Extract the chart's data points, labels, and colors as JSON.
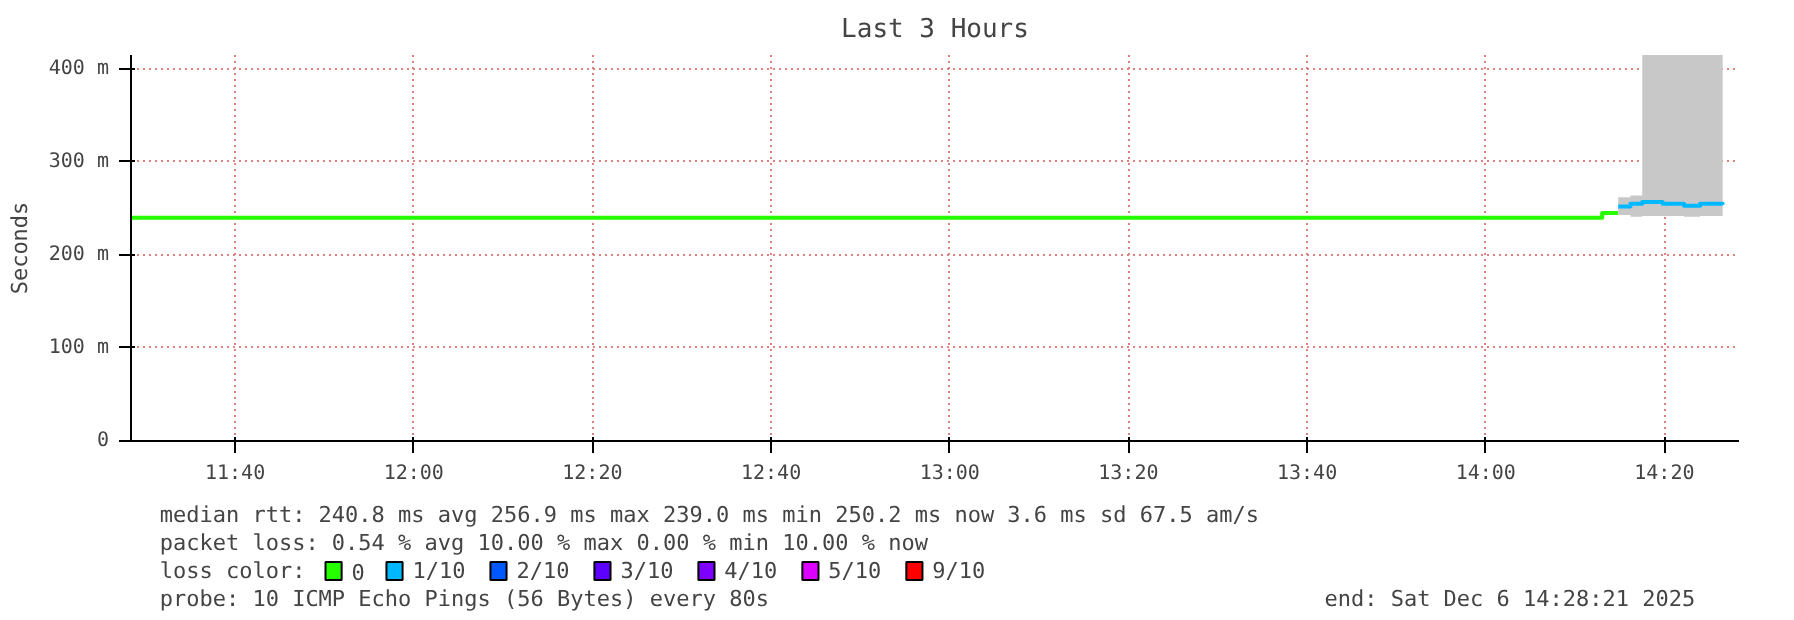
{
  "chart_data": {
    "type": "step",
    "title": "Last 3 Hours",
    "ylabel": "Seconds",
    "legend_title": "loss color:",
    "legend": "bottom",
    "grid": true,
    "line_style": "solid",
    "xlim": [
      11.4725,
      14.4725
    ],
    "ylim": [
      0,
      415
    ],
    "xticks": [
      {
        "value": 11.6667,
        "label": "11:40"
      },
      {
        "value": 12.0,
        "label": "12:00"
      },
      {
        "value": 12.3333,
        "label": "12:20"
      },
      {
        "value": 12.6667,
        "label": "12:40"
      },
      {
        "value": 13.0,
        "label": "13:00"
      },
      {
        "value": 13.3333,
        "label": "13:20"
      },
      {
        "value": 13.6667,
        "label": "13:40"
      },
      {
        "value": 14.0,
        "label": "14:00"
      },
      {
        "value": 14.3333,
        "label": "14:20"
      }
    ],
    "yticks": [
      0,
      {
        "value": 100,
        "label": "100 m"
      },
      {
        "value": 200,
        "label": "200 m"
      },
      {
        "value": 300,
        "label": "300 m"
      },
      {
        "value": 400,
        "label": "400 m"
      }
    ],
    "series": [
      {
        "name": "0",
        "color": "#26ff00",
        "x": [
          11.4725,
          14.2172,
          14.2472
        ],
        "values": [
          240,
          245,
          245
        ]
      },
      {
        "name": "1/10",
        "color": "#00b8ff",
        "x": [
          14.2472,
          14.27,
          14.292,
          14.33,
          14.37,
          14.4,
          14.442
        ],
        "values": [
          252,
          255,
          257,
          255,
          253,
          255,
          254
        ],
        "lower": [
          243,
          241,
          242,
          242,
          241,
          242,
          242
        ],
        "upper": [
          262,
          264,
          415,
          415,
          415,
          415,
          415
        ]
      },
      {
        "name": "2/10",
        "color": "#0059ff"
      },
      {
        "name": "3/10",
        "color": "#5e00ff"
      },
      {
        "name": "4/10",
        "color": "#7e00ff"
      },
      {
        "name": "5/10",
        "color": "#dd00ff"
      },
      {
        "name": "9/10",
        "color": "#ff0000"
      }
    ],
    "annotations": [
      "median rtt:  240.8 ms avg  256.9 ms max  239.0 ms min  250.2 ms now  3.6 ms sd  67.5   am/s",
      "packet loss: 0.54 % avg  10.00 % max  0.00 % min  10.00 % now",
      "probe:       10 ICMP Echo Pings (56 Bytes) every 80s",
      "end: Sat Dec  6 14:28:21 2025"
    ]
  }
}
